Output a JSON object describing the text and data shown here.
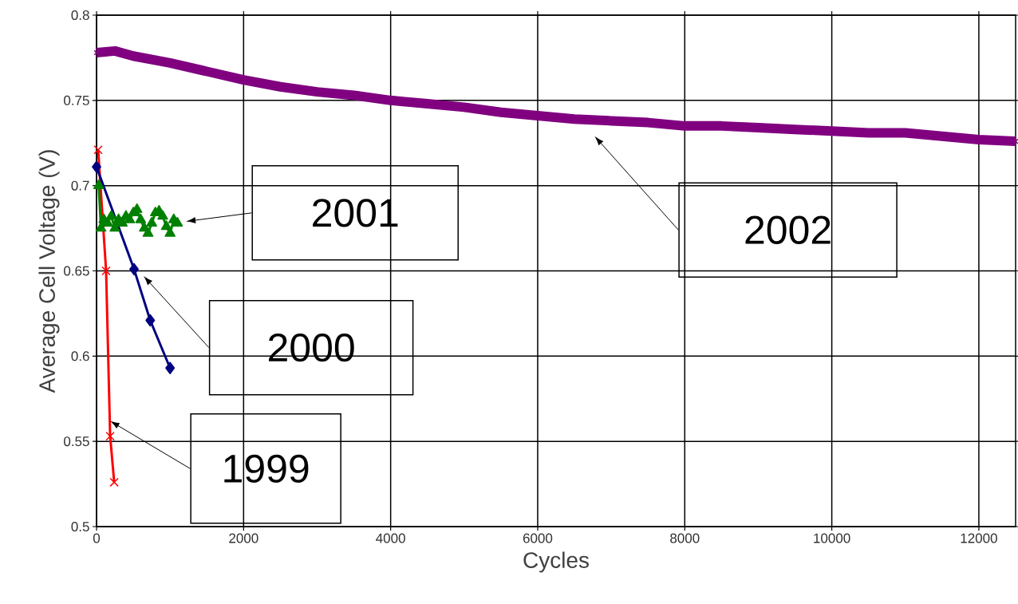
{
  "chart_data": {
    "type": "line",
    "xlabel": "Cycles",
    "ylabel": "Average Cell Voltage (V)",
    "xlim": [
      0,
      12500
    ],
    "ylim": [
      0.5,
      0.8
    ],
    "xticks": [
      0,
      2000,
      4000,
      6000,
      8000,
      10000,
      12000
    ],
    "yticks": [
      0.5,
      0.55,
      0.6,
      0.65,
      0.7,
      0.75,
      0.8
    ],
    "grid": true,
    "series": [
      {
        "color": "#ff0000",
        "marker": "cross",
        "x": [
          22,
          130,
          185,
          240
        ],
        "values": [
          0.721,
          0.65,
          0.553,
          0.526
        ]
      },
      {
        "color": "#000080",
        "marker": "diamond",
        "x": [
          0,
          510,
          730,
          1000
        ],
        "values": [
          0.711,
          0.651,
          0.621,
          0.593
        ]
      },
      {
        "color": "#008000",
        "marker": "triangle",
        "x": [
          30,
          60,
          100,
          150,
          200,
          250,
          300,
          350,
          400,
          450,
          500,
          550,
          600,
          650,
          700,
          750,
          800,
          850,
          900,
          950,
          1000,
          1050,
          1100
        ],
        "values": [
          0.7,
          0.675,
          0.68,
          0.678,
          0.682,
          0.675,
          0.68,
          0.678,
          0.682,
          0.68,
          0.684,
          0.686,
          0.68,
          0.675,
          0.672,
          0.678,
          0.684,
          0.685,
          0.682,
          0.676,
          0.672,
          0.68,
          0.678
        ]
      },
      {
        "color": "#800080",
        "marker": "cross",
        "x": [
          0,
          250,
          500,
          1000,
          1500,
          2000,
          2500,
          3000,
          3500,
          4000,
          4500,
          5000,
          5500,
          6000,
          6500,
          7000,
          7500,
          8000,
          8500,
          9000,
          9500,
          10000,
          10500,
          11000,
          11500,
          12000,
          12500
        ],
        "values": [
          0.778,
          0.779,
          0.776,
          0.772,
          0.767,
          0.762,
          0.758,
          0.755,
          0.753,
          0.75,
          0.748,
          0.746,
          0.743,
          0.741,
          0.739,
          0.738,
          0.737,
          0.735,
          0.735,
          0.734,
          0.733,
          0.732,
          0.731,
          0.731,
          0.729,
          0.727,
          0.726
        ]
      }
    ],
    "annotations": [
      {
        "text": "1999",
        "x": 183,
        "y": 0.562
      },
      "2000",
      "2001",
      "2002"
    ]
  }
}
